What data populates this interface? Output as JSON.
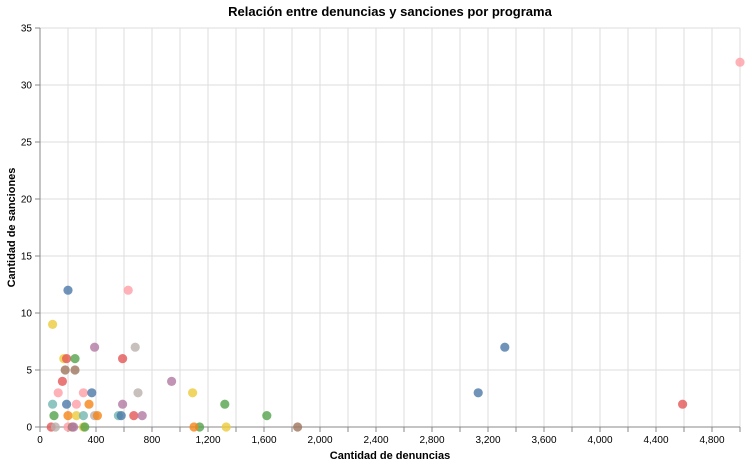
{
  "chart_data": {
    "type": "scatter",
    "title": "Relación entre denuncias y sanciones por programa",
    "xlabel": "Cantidad de denuncias",
    "ylabel": "Cantidad de sanciones",
    "xlim": [
      0,
      5000
    ],
    "ylim": [
      0,
      35
    ],
    "x_ticks": [
      0,
      400,
      800,
      1200,
      1600,
      2000,
      2400,
      2800,
      3200,
      3600,
      4000,
      4400,
      4800
    ],
    "x_tick_labels": [
      "0",
      "400",
      "800",
      "1,200",
      "1,600",
      "2,000",
      "2,400",
      "2,800",
      "3,200",
      "3,600",
      "4,000",
      "4,400",
      "4,800"
    ],
    "x_grid_step": 200,
    "y_ticks": [
      0,
      5,
      10,
      15,
      20,
      25,
      30,
      35
    ],
    "y_tick_labels": [
      "0",
      "5",
      "10",
      "15",
      "20",
      "25",
      "30",
      "35"
    ],
    "grid": true,
    "legend": "none",
    "palette": [
      "#4c78a8",
      "#f58518",
      "#e45756",
      "#72b7b2",
      "#54a24b",
      "#eeca3b",
      "#b279a2",
      "#ff9da6",
      "#9d755d",
      "#bab0ac"
    ],
    "points": [
      {
        "x": 5000,
        "y": 32,
        "color": "#ff9da6"
      },
      {
        "x": 3320,
        "y": 7,
        "color": "#4c78a8"
      },
      {
        "x": 3130,
        "y": 3,
        "color": "#4c78a8"
      },
      {
        "x": 4590,
        "y": 2,
        "color": "#e45756"
      },
      {
        "x": 1320,
        "y": 2,
        "color": "#54a24b"
      },
      {
        "x": 1620,
        "y": 1,
        "color": "#54a24b"
      },
      {
        "x": 1840,
        "y": 0,
        "color": "#9d755d"
      },
      {
        "x": 1140,
        "y": 0,
        "color": "#54a24b"
      },
      {
        "x": 1330,
        "y": 0,
        "color": "#eeca3b"
      },
      {
        "x": 1100,
        "y": 0,
        "color": "#f58518"
      },
      {
        "x": 1090,
        "y": 3,
        "color": "#eeca3b"
      },
      {
        "x": 940,
        "y": 4,
        "color": "#b279a2"
      },
      {
        "x": 200,
        "y": 12,
        "color": "#4c78a8"
      },
      {
        "x": 630,
        "y": 12,
        "color": "#ff9da6"
      },
      {
        "x": 90,
        "y": 9,
        "color": "#eeca3b"
      },
      {
        "x": 390,
        "y": 7,
        "color": "#b279a2"
      },
      {
        "x": 680,
        "y": 7,
        "color": "#bab0ac"
      },
      {
        "x": 170,
        "y": 6,
        "color": "#eeca3b"
      },
      {
        "x": 190,
        "y": 6,
        "color": "#e45756"
      },
      {
        "x": 250,
        "y": 6,
        "color": "#54a24b"
      },
      {
        "x": 590,
        "y": 6,
        "color": "#e45756"
      },
      {
        "x": 180,
        "y": 5,
        "color": "#9d755d"
      },
      {
        "x": 250,
        "y": 5,
        "color": "#9d755d"
      },
      {
        "x": 160,
        "y": 4,
        "color": "#e45756"
      },
      {
        "x": 130,
        "y": 3,
        "color": "#ff9da6"
      },
      {
        "x": 310,
        "y": 3,
        "color": "#ff9da6"
      },
      {
        "x": 370,
        "y": 3,
        "color": "#4c78a8"
      },
      {
        "x": 700,
        "y": 3,
        "color": "#bab0ac"
      },
      {
        "x": 90,
        "y": 2,
        "color": "#72b7b2"
      },
      {
        "x": 190,
        "y": 2,
        "color": "#4c78a8"
      },
      {
        "x": 260,
        "y": 2,
        "color": "#ff9da6"
      },
      {
        "x": 350,
        "y": 2,
        "color": "#f58518"
      },
      {
        "x": 590,
        "y": 2,
        "color": "#b279a2"
      },
      {
        "x": 100,
        "y": 1,
        "color": "#54a24b"
      },
      {
        "x": 200,
        "y": 1,
        "color": "#f58518"
      },
      {
        "x": 260,
        "y": 1,
        "color": "#eeca3b"
      },
      {
        "x": 310,
        "y": 1,
        "color": "#72b7b2"
      },
      {
        "x": 390,
        "y": 1,
        "color": "#bab0ac"
      },
      {
        "x": 410,
        "y": 1,
        "color": "#f58518"
      },
      {
        "x": 560,
        "y": 1,
        "color": "#72b7b2"
      },
      {
        "x": 580,
        "y": 1,
        "color": "#4c78a8"
      },
      {
        "x": 670,
        "y": 1,
        "color": "#e45756"
      },
      {
        "x": 730,
        "y": 1,
        "color": "#b279a2"
      },
      {
        "x": 80,
        "y": 0,
        "color": "#e45756"
      },
      {
        "x": 110,
        "y": 0,
        "color": "#bab0ac"
      },
      {
        "x": 200,
        "y": 0,
        "color": "#ff9da6"
      },
      {
        "x": 230,
        "y": 0,
        "color": "#9d755d"
      },
      {
        "x": 240,
        "y": 0,
        "color": "#b279a2"
      },
      {
        "x": 310,
        "y": 0,
        "color": "#eeca3b"
      },
      {
        "x": 320,
        "y": 0,
        "color": "#54a24b"
      }
    ]
  }
}
